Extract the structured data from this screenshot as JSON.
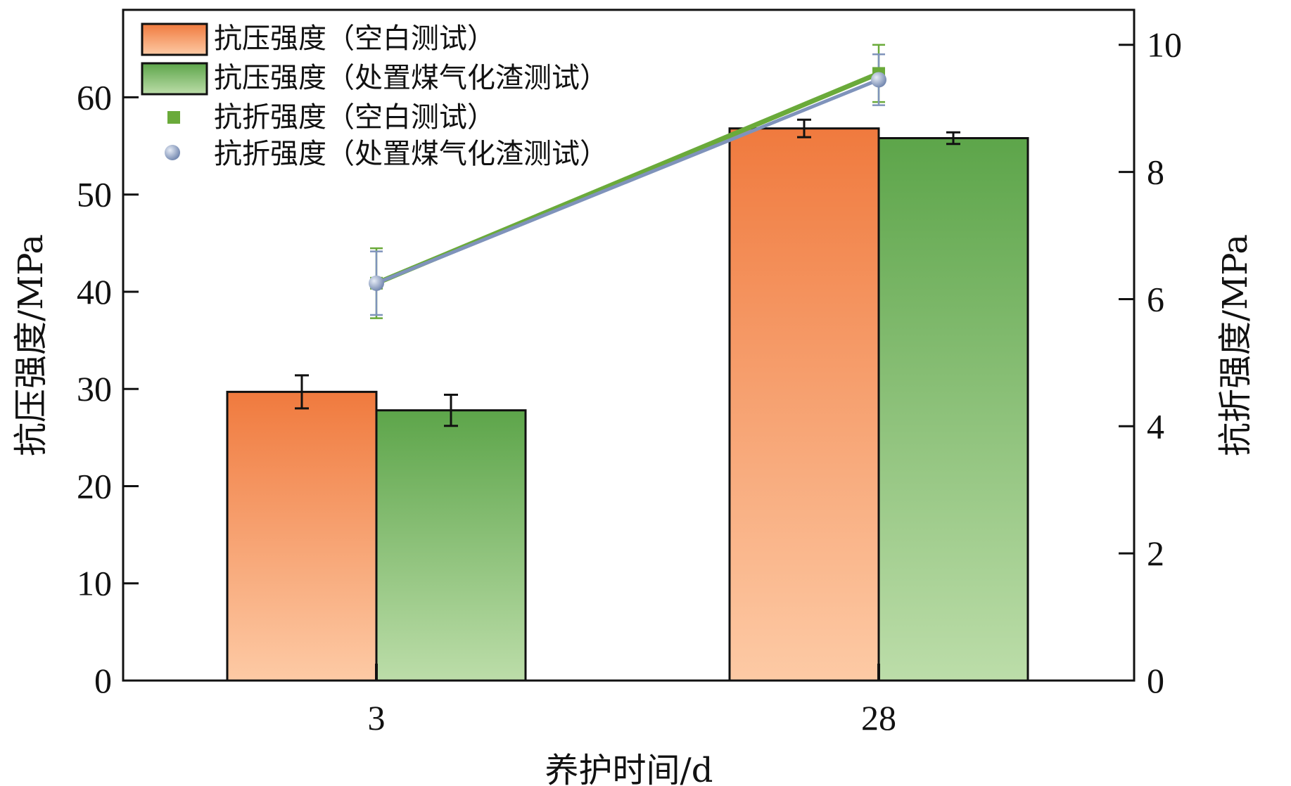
{
  "chart_data": {
    "type": "bar",
    "categories": [
      "3",
      "28"
    ],
    "xlabel": "养护时间/d",
    "ylabel": "抗压强度/MPa",
    "y2label": "抗折强度/MPa",
    "ylim": [
      0,
      69
    ],
    "y2lim": [
      0,
      10.55
    ],
    "yticks": [
      0,
      10,
      20,
      30,
      40,
      50,
      60
    ],
    "y2ticks": [
      0,
      2,
      4,
      6,
      8,
      10
    ],
    "grid": false,
    "legend_position": "top-left",
    "series": [
      {
        "name": "抗压强度（空白测试）",
        "kind": "bar",
        "axis": "left",
        "values": [
          29.7,
          56.8
        ],
        "errors": [
          1.7,
          0.9
        ],
        "color_top": "#f07a3e",
        "color_bottom": "#fdcaa5"
      },
      {
        "name": "抗压强度（处置煤气化渣测试）",
        "kind": "bar",
        "axis": "left",
        "values": [
          27.8,
          55.8
        ],
        "errors": [
          1.6,
          0.6
        ],
        "color_top": "#5da54a",
        "color_bottom": "#bcdda9"
      },
      {
        "name": "抗折强度（空白测试）",
        "kind": "line",
        "axis": "right",
        "marker": "square",
        "values": [
          6.25,
          9.55
        ],
        "errors": [
          0.55,
          0.45
        ],
        "color": "#6aaa3a"
      },
      {
        "name": "抗折强度（处置煤气化渣测试）",
        "kind": "line",
        "axis": "right",
        "marker": "circle",
        "values": [
          6.25,
          9.45
        ],
        "errors": [
          0.5,
          0.4
        ],
        "color": "#7f93bb"
      }
    ]
  }
}
